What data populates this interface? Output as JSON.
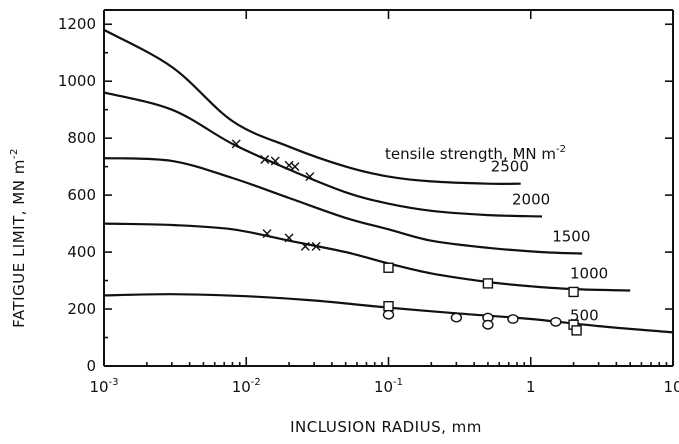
{
  "chart_data": {
    "type": "line",
    "xlabel": "INCLUSION RADIUS, mm",
    "ylabel": "FATIGUE LIMIT, MN m",
    "ylabel_exponent": "-2",
    "x_scale": "log",
    "xlim": [
      0.001,
      10
    ],
    "ylim": [
      0,
      1250
    ],
    "x_ticks": [
      {
        "value": 0.001,
        "base": "10",
        "exp": "-3"
      },
      {
        "value": 0.01,
        "base": "10",
        "exp": "-2"
      },
      {
        "value": 0.1,
        "base": "10",
        "exp": "-1"
      },
      {
        "value": 1,
        "base": "1",
        "exp": ""
      },
      {
        "value": 10,
        "base": "10",
        "exp": ""
      }
    ],
    "y_ticks": [
      0,
      200,
      400,
      600,
      800,
      1000,
      1200
    ],
    "legend_title": "tensile strength, MN m",
    "legend_title_exponent": "-2",
    "series": [
      {
        "name": "2500",
        "x": [
          0.001,
          0.003,
          0.008,
          0.02,
          0.05,
          0.1,
          0.2,
          0.5,
          0.85
        ],
        "y": [
          1180,
          1050,
          860,
          770,
          700,
          665,
          648,
          640,
          640
        ]
      },
      {
        "name": "2000",
        "x": [
          0.001,
          0.003,
          0.008,
          0.02,
          0.05,
          0.1,
          0.2,
          0.5,
          1.2
        ],
        "y": [
          960,
          900,
          780,
          690,
          610,
          570,
          545,
          530,
          525
        ]
      },
      {
        "name": "1500",
        "x": [
          0.001,
          0.003,
          0.008,
          0.02,
          0.05,
          0.1,
          0.2,
          0.5,
          1.2,
          2.3
        ],
        "y": [
          730,
          720,
          660,
          590,
          520,
          480,
          440,
          415,
          400,
          395
        ]
      },
      {
        "name": "1000",
        "x": [
          0.001,
          0.003,
          0.008,
          0.02,
          0.05,
          0.1,
          0.2,
          0.5,
          1,
          2,
          5
        ],
        "y": [
          500,
          495,
          480,
          440,
          400,
          360,
          325,
          295,
          280,
          270,
          265
        ]
      },
      {
        "name": "500",
        "x": [
          0.001,
          0.003,
          0.01,
          0.03,
          0.1,
          0.3,
          1,
          3,
          10
        ],
        "y": [
          248,
          252,
          245,
          230,
          205,
          185,
          165,
          140,
          118
        ]
      }
    ],
    "markers": {
      "x": [
        {
          "x": 0.0085,
          "y": 780
        },
        {
          "x": 0.0135,
          "y": 725
        },
        {
          "x": 0.016,
          "y": 720
        },
        {
          "x": 0.02,
          "y": 705
        },
        {
          "x": 0.022,
          "y": 700
        },
        {
          "x": 0.028,
          "y": 665
        },
        {
          "x": 0.014,
          "y": 465
        },
        {
          "x": 0.02,
          "y": 450
        },
        {
          "x": 0.026,
          "y": 420
        },
        {
          "x": 0.031,
          "y": 420
        }
      ],
      "square": [
        {
          "x": 0.1,
          "y": 345
        },
        {
          "x": 0.5,
          "y": 290
        },
        {
          "x": 2,
          "y": 260
        },
        {
          "x": 0.1,
          "y": 210
        },
        {
          "x": 2,
          "y": 145
        },
        {
          "x": 2.1,
          "y": 125
        }
      ],
      "circle": [
        {
          "x": 0.1,
          "y": 180
        },
        {
          "x": 0.3,
          "y": 170
        },
        {
          "x": 0.5,
          "y": 170
        },
        {
          "x": 0.5,
          "y": 145
        },
        {
          "x": 0.75,
          "y": 165
        },
        {
          "x": 1.5,
          "y": 155
        }
      ]
    }
  }
}
